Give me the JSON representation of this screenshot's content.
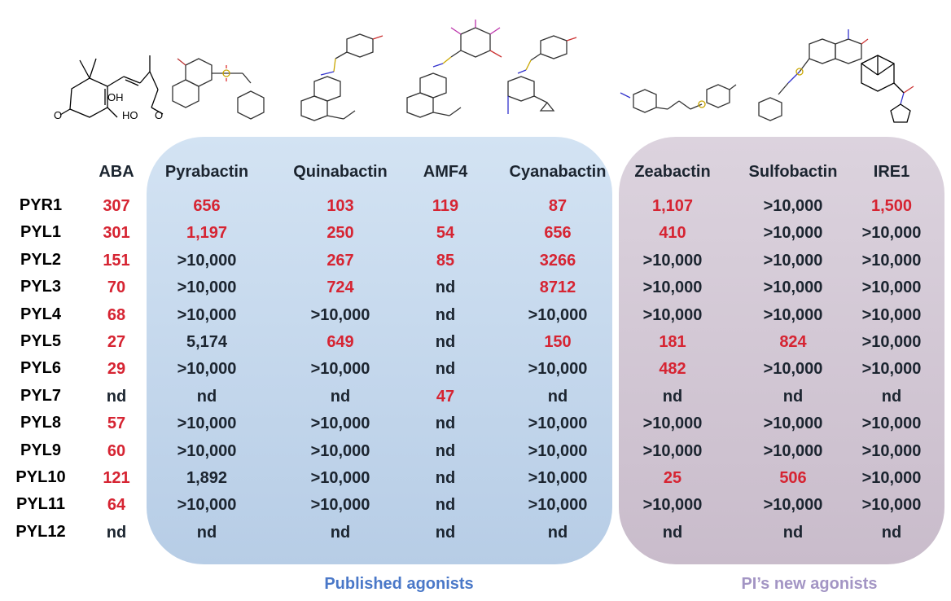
{
  "colors": {
    "potent": "#d62432",
    "weak": "#1c2530",
    "published_panel": "#c4d7ec",
    "new_panel": "#d1c6d4",
    "published_label": "#4a78c8",
    "new_label": "#a395c4"
  },
  "columns": [
    "ABA",
    "Pyrabactin",
    "Quinabactin",
    "AMF4",
    "Cyanabactin",
    "Zeabactin",
    "Sulfobactin",
    "IRE1"
  ],
  "rows": [
    {
      "receptor": "PYR1",
      "values": [
        {
          "v": "307",
          "red": true
        },
        {
          "v": "656",
          "red": true
        },
        {
          "v": "103",
          "red": true
        },
        {
          "v": "119",
          "red": true
        },
        {
          "v": "87",
          "red": true
        },
        {
          "v": "1,107",
          "red": true
        },
        {
          "v": ">10,000",
          "red": false
        },
        {
          "v": "1,500",
          "red": true
        }
      ]
    },
    {
      "receptor": "PYL1",
      "values": [
        {
          "v": "301",
          "red": true
        },
        {
          "v": "1,197",
          "red": true
        },
        {
          "v": "250",
          "red": true
        },
        {
          "v": "54",
          "red": true
        },
        {
          "v": "656",
          "red": true
        },
        {
          "v": "410",
          "red": true
        },
        {
          "v": ">10,000",
          "red": false
        },
        {
          "v": ">10,000",
          "red": false
        }
      ]
    },
    {
      "receptor": "PYL2",
      "values": [
        {
          "v": "151",
          "red": true
        },
        {
          "v": ">10,000",
          "red": false
        },
        {
          "v": "267",
          "red": true
        },
        {
          "v": "85",
          "red": true
        },
        {
          "v": "3266",
          "red": true
        },
        {
          "v": ">10,000",
          "red": false
        },
        {
          "v": ">10,000",
          "red": false
        },
        {
          "v": ">10,000",
          "red": false
        }
      ]
    },
    {
      "receptor": "PYL3",
      "values": [
        {
          "v": "70",
          "red": true
        },
        {
          "v": ">10,000",
          "red": false
        },
        {
          "v": "724",
          "red": true
        },
        {
          "v": "nd",
          "red": false
        },
        {
          "v": "8712",
          "red": true
        },
        {
          "v": ">10,000",
          "red": false
        },
        {
          "v": ">10,000",
          "red": false
        },
        {
          "v": ">10,000",
          "red": false
        }
      ]
    },
    {
      "receptor": "PYL4",
      "values": [
        {
          "v": "68",
          "red": true
        },
        {
          "v": ">10,000",
          "red": false
        },
        {
          "v": ">10,000",
          "red": false
        },
        {
          "v": "nd",
          "red": false
        },
        {
          "v": ">10,000",
          "red": false
        },
        {
          "v": ">10,000",
          "red": false
        },
        {
          "v": ">10,000",
          "red": false
        },
        {
          "v": ">10,000",
          "red": false
        }
      ]
    },
    {
      "receptor": "PYL5",
      "values": [
        {
          "v": "27",
          "red": true
        },
        {
          "v": "5,174",
          "red": false
        },
        {
          "v": "649",
          "red": true
        },
        {
          "v": "nd",
          "red": false
        },
        {
          "v": "150",
          "red": true
        },
        {
          "v": "181",
          "red": true
        },
        {
          "v": "824",
          "red": true
        },
        {
          "v": ">10,000",
          "red": false
        }
      ]
    },
    {
      "receptor": "PYL6",
      "values": [
        {
          "v": "29",
          "red": true
        },
        {
          "v": ">10,000",
          "red": false
        },
        {
          "v": ">10,000",
          "red": false
        },
        {
          "v": "nd",
          "red": false
        },
        {
          "v": ">10,000",
          "red": false
        },
        {
          "v": "482",
          "red": true
        },
        {
          "v": ">10,000",
          "red": false
        },
        {
          "v": ">10,000",
          "red": false
        }
      ]
    },
    {
      "receptor": "PYL7",
      "values": [
        {
          "v": "nd",
          "red": false
        },
        {
          "v": "nd",
          "red": false
        },
        {
          "v": "nd",
          "red": false
        },
        {
          "v": "47",
          "red": true
        },
        {
          "v": "nd",
          "red": false
        },
        {
          "v": "nd",
          "red": false
        },
        {
          "v": "nd",
          "red": false
        },
        {
          "v": "nd",
          "red": false
        }
      ]
    },
    {
      "receptor": "PYL8",
      "values": [
        {
          "v": "57",
          "red": true
        },
        {
          "v": ">10,000",
          "red": false
        },
        {
          "v": ">10,000",
          "red": false
        },
        {
          "v": "nd",
          "red": false
        },
        {
          "v": ">10,000",
          "red": false
        },
        {
          "v": ">10,000",
          "red": false
        },
        {
          "v": ">10,000",
          "red": false
        },
        {
          "v": ">10,000",
          "red": false
        }
      ]
    },
    {
      "receptor": "PYL9",
      "values": [
        {
          "v": "60",
          "red": true
        },
        {
          "v": ">10,000",
          "red": false
        },
        {
          "v": ">10,000",
          "red": false
        },
        {
          "v": "nd",
          "red": false
        },
        {
          "v": ">10,000",
          "red": false
        },
        {
          "v": ">10,000",
          "red": false
        },
        {
          "v": ">10,000",
          "red": false
        },
        {
          "v": ">10,000",
          "red": false
        }
      ]
    },
    {
      "receptor": "PYL10",
      "values": [
        {
          "v": "121",
          "red": true
        },
        {
          "v": "1,892",
          "red": false
        },
        {
          "v": ">10,000",
          "red": false
        },
        {
          "v": "nd",
          "red": false
        },
        {
          "v": ">10,000",
          "red": false
        },
        {
          "v": "25",
          "red": true
        },
        {
          "v": "506",
          "red": true
        },
        {
          "v": ">10,000",
          "red": false
        }
      ]
    },
    {
      "receptor": "PYL11",
      "values": [
        {
          "v": "64",
          "red": true
        },
        {
          "v": ">10,000",
          "red": false
        },
        {
          "v": ">10,000",
          "red": false
        },
        {
          "v": "nd",
          "red": false
        },
        {
          "v": ">10,000",
          "red": false
        },
        {
          "v": ">10,000",
          "red": false
        },
        {
          "v": ">10,000",
          "red": false
        },
        {
          "v": ">10,000",
          "red": false
        }
      ]
    },
    {
      "receptor": "PYL12",
      "values": [
        {
          "v": "nd",
          "red": false
        },
        {
          "v": "nd",
          "red": false
        },
        {
          "v": "nd",
          "red": false
        },
        {
          "v": "nd",
          "red": false
        },
        {
          "v": "nd",
          "red": false
        },
        {
          "v": "nd",
          "red": false
        },
        {
          "v": "nd",
          "red": false
        },
        {
          "v": "nd",
          "red": false
        }
      ]
    }
  ],
  "groups": {
    "published": "Published agonists",
    "new": "PI’s new agonists"
  },
  "aba_structure_labels": {
    "oh": "OH",
    "o_left": "O",
    "ho": "HO",
    "o_right": "O"
  }
}
